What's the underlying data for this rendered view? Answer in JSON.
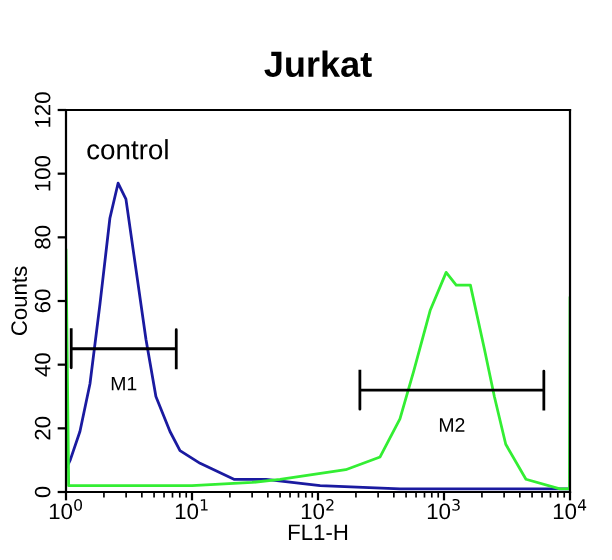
{
  "chart_data": {
    "type": "line",
    "title": "Jurkat",
    "xlabel": "FL1-H",
    "ylabel": "Counts",
    "log": "x",
    "grid": false,
    "xlim": [
      1,
      10000
    ],
    "xticks": [
      {
        "value": 1,
        "label": "10$^{0}$"
      },
      {
        "value": 10,
        "label": "10$^{1}$"
      },
      {
        "value": 100,
        "label": "10$^{2}$"
      },
      {
        "value": 1000,
        "label": "10$^{3}$"
      },
      {
        "value": 10000,
        "label": "10$^{4}$"
      }
    ],
    "ylim": [
      0,
      120
    ],
    "yticks": [
      0,
      20,
      40,
      60,
      80,
      100,
      120
    ],
    "series": [
      {
        "color": "#1a1aa0",
        "x": [
          1.02,
          1.08,
          1.29,
          1.55,
          1.86,
          2.23,
          2.59,
          2.99,
          3.59,
          4.31,
          5.17,
          6.69,
          8.03,
          11.6,
          21.5,
          38.7,
          104,
          447,
          2760,
          9600
        ],
        "values": [
          8,
          10,
          19,
          34,
          59,
          86,
          97,
          92,
          70,
          48,
          30,
          19,
          13,
          9,
          4,
          4,
          2,
          1,
          1,
          1
        ]
      },
      {
        "color": "#33ee33",
        "x": [
          1,
          1.05,
          10,
          30,
          50,
          166,
          311,
          447,
          575,
          776,
          1040,
          1250,
          1620,
          2090,
          2510,
          3090,
          4470,
          8320,
          9900,
          10000
        ],
        "values": [
          76,
          2,
          2,
          3,
          4,
          7,
          11,
          23,
          38,
          57,
          69,
          65,
          65,
          45,
          30,
          15,
          4,
          1,
          1,
          61
        ]
      },
      {
        "color": "#000000",
        "x": [
          1.1,
          1.1,
          1.1,
          7.5,
          7.5,
          7.5
        ],
        "values": [
          51,
          39,
          45,
          45,
          51,
          39
        ]
      },
      {
        "color": "#000000",
        "x": [
          215,
          215,
          215,
          6200,
          6200,
          6200
        ],
        "values": [
          38,
          26,
          32,
          32,
          38,
          26
        ]
      }
    ],
    "annotations": [
      "control",
      "M1",
      "M2"
    ]
  }
}
